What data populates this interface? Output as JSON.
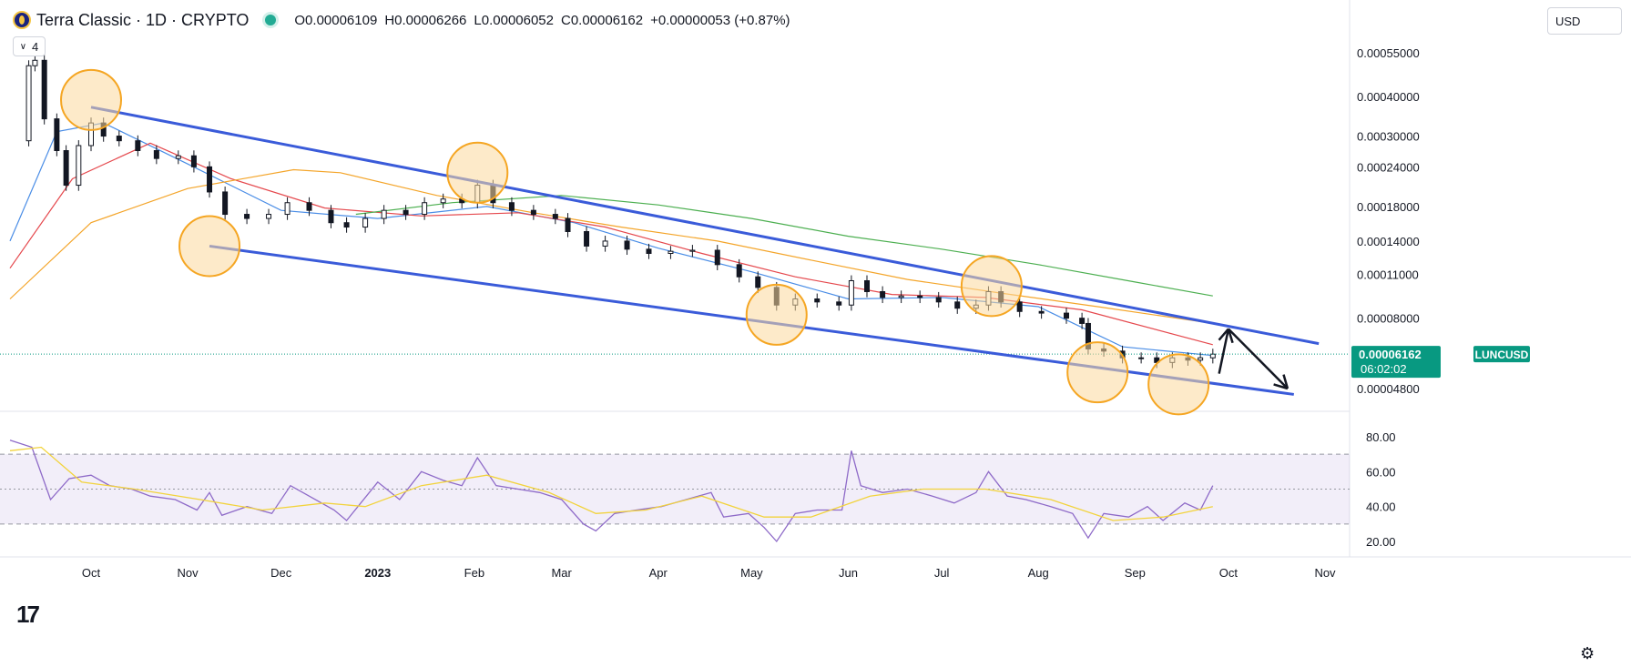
{
  "header": {
    "title": "Terra Classic · 1D · CRYPTO",
    "open": "O0.00006109",
    "high": "H0.00006266",
    "low": "L0.00006052",
    "close": "C0.00006162",
    "change": "+0.00000053 (+0.87%)",
    "indicator_count": "4",
    "currency": "USD"
  },
  "colors": {
    "channel": "#3a5bd9",
    "ma_fast": "#4a8de6",
    "ma_mid": "#e5484d",
    "ma_slow": "#f4a52a",
    "ma_long": "#4caf50",
    "rsi": "#8e6ac8",
    "rsi_ma": "#f2d33c",
    "price_tag": "#089981",
    "circle_fill": "#fbd89c",
    "circle_stroke": "#f5a623"
  },
  "chart_data": [
    {
      "type": "candlestick",
      "title": "Terra Classic · 1D · CRYPTO",
      "symbol": "LUNCUSD",
      "current_price": "0.00006162",
      "countdown": "06:02:02",
      "y_scale": "log",
      "y_ticks": [
        "0.00055000",
        "0.00040000",
        "0.00030000",
        "0.00024000",
        "0.00018000",
        "0.00014000",
        "0.00011000",
        "0.00008000",
        "0.00004800"
      ],
      "x_ticks": [
        "Oct",
        "Nov",
        "Dec",
        "2023",
        "Feb",
        "Mar",
        "Apr",
        "May",
        "Jun",
        "Jul",
        "Aug",
        "Sep",
        "Oct",
        "Nov"
      ],
      "x_range": [
        "2022-09-05",
        "2023-11-15"
      ],
      "close_series": [
        [
          "2022-09-08",
          0.00029
        ],
        [
          "2022-09-11",
          0.0005
        ],
        [
          "2022-09-13",
          0.00052
        ],
        [
          "2022-09-16",
          0.00034
        ],
        [
          "2022-09-20",
          0.00027
        ],
        [
          "2022-09-23",
          0.00021
        ],
        [
          "2022-09-27",
          0.00028
        ],
        [
          "2022-10-01",
          0.00033
        ],
        [
          "2022-10-05",
          0.0003
        ],
        [
          "2022-10-10",
          0.00029
        ],
        [
          "2022-10-16",
          0.00027
        ],
        [
          "2022-10-22",
          0.000255
        ],
        [
          "2022-10-29",
          0.00026
        ],
        [
          "2022-11-03",
          0.00024
        ],
        [
          "2022-11-08",
          0.0002
        ],
        [
          "2022-11-13",
          0.00017
        ],
        [
          "2022-11-20",
          0.000165
        ],
        [
          "2022-11-27",
          0.00017
        ],
        [
          "2022-12-03",
          0.000185
        ],
        [
          "2022-12-10",
          0.000175
        ],
        [
          "2022-12-17",
          0.00016
        ],
        [
          "2022-12-22",
          0.000155
        ],
        [
          "2022-12-28",
          0.000165
        ],
        [
          "2023-01-03",
          0.000175
        ],
        [
          "2023-01-10",
          0.00017
        ],
        [
          "2023-01-16",
          0.000185
        ],
        [
          "2023-01-22",
          0.00019
        ],
        [
          "2023-01-28",
          0.000185
        ],
        [
          "2023-02-02",
          0.00021
        ],
        [
          "2023-02-07",
          0.000185
        ],
        [
          "2023-02-13",
          0.000175
        ],
        [
          "2023-02-20",
          0.00017
        ],
        [
          "2023-02-27",
          0.000165
        ],
        [
          "2023-03-03",
          0.00015
        ],
        [
          "2023-03-09",
          0.000135
        ],
        [
          "2023-03-15",
          0.00014
        ],
        [
          "2023-03-22",
          0.000132
        ],
        [
          "2023-03-29",
          0.000128
        ],
        [
          "2023-04-05",
          0.00013
        ],
        [
          "2023-04-12",
          0.000131
        ],
        [
          "2023-04-20",
          0.000118
        ],
        [
          "2023-04-27",
          0.000108
        ],
        [
          "2023-05-03",
          0.0001
        ],
        [
          "2023-05-09",
          8.8e-05
        ],
        [
          "2023-05-15",
          9.2e-05
        ],
        [
          "2023-05-22",
          9e-05
        ],
        [
          "2023-05-29",
          8.8e-05
        ],
        [
          "2023-06-02",
          0.000105
        ],
        [
          "2023-06-07",
          9.7e-05
        ],
        [
          "2023-06-12",
          9.3e-05
        ],
        [
          "2023-06-18",
          9.4e-05
        ],
        [
          "2023-06-24",
          9.3e-05
        ],
        [
          "2023-06-30",
          9e-05
        ],
        [
          "2023-07-06",
          8.6e-05
        ],
        [
          "2023-07-12",
          8.8e-05
        ],
        [
          "2023-07-16",
          9.7e-05
        ],
        [
          "2023-07-20",
          9e-05
        ],
        [
          "2023-07-26",
          8.4e-05
        ],
        [
          "2023-08-02",
          8.3e-05
        ],
        [
          "2023-08-10",
          8e-05
        ],
        [
          "2023-08-15",
          7.7e-05
        ],
        [
          "2023-08-17",
          6.4e-05
        ],
        [
          "2023-08-22",
          6.3e-05
        ],
        [
          "2023-08-28",
          6e-05
        ],
        [
          "2023-09-03",
          6e-05
        ],
        [
          "2023-09-08",
          5.8e-05
        ],
        [
          "2023-09-13",
          6e-05
        ],
        [
          "2023-09-18",
          5.9e-05
        ],
        [
          "2023-09-22",
          6e-05
        ],
        [
          "2023-09-26",
          6.162e-05
        ]
      ],
      "lines": [
        {
          "name": "",
          "kind": "moving-average",
          "color_key": "ma_fast",
          "points": [
            [
              "2022-09-05",
              0.00014
            ],
            [
              "2022-09-20",
              0.00031
            ],
            [
              "2022-10-05",
              0.00033
            ],
            [
              "2022-11-01",
              0.000245
            ],
            [
              "2022-12-01",
              0.000175
            ],
            [
              "2023-01-01",
              0.000165
            ],
            [
              "2023-02-05",
              0.00018
            ],
            [
              "2023-03-05",
              0.00016
            ],
            [
              "2023-04-01",
              0.000133
            ],
            [
              "2023-05-01",
              0.000112
            ],
            [
              "2023-06-01",
              9.2e-05
            ],
            [
              "2023-07-01",
              9.3e-05
            ],
            [
              "2023-08-01",
              8.7e-05
            ],
            [
              "2023-08-28",
              6.5e-05
            ],
            [
              "2023-09-26",
              6.1e-05
            ]
          ]
        },
        {
          "name": "",
          "kind": "moving-average",
          "color_key": "ma_mid",
          "points": [
            [
              "2022-09-05",
              0.000115
            ],
            [
              "2022-09-25",
              0.00022
            ],
            [
              "2022-10-20",
              0.000285
            ],
            [
              "2022-11-15",
              0.00022
            ],
            [
              "2022-12-15",
              0.000178
            ],
            [
              "2023-01-15",
              0.000168
            ],
            [
              "2023-02-15",
              0.000172
            ],
            [
              "2023-03-15",
              0.000155
            ],
            [
              "2023-04-15",
              0.000128
            ],
            [
              "2023-05-15",
              0.000108
            ],
            [
              "2023-06-15",
              9.5e-05
            ],
            [
              "2023-07-15",
              9.3e-05
            ],
            [
              "2023-08-15",
              8.5e-05
            ],
            [
              "2023-09-26",
              6.6e-05
            ]
          ]
        },
        {
          "name": "",
          "kind": "moving-average",
          "color_key": "ma_slow",
          "points": [
            [
              "2022-09-05",
              9.2e-05
            ],
            [
              "2022-10-01",
              0.00016
            ],
            [
              "2022-11-01",
              0.000205
            ],
            [
              "2022-12-05",
              0.000235
            ],
            [
              "2022-12-20",
              0.00023
            ],
            [
              "2023-01-20",
              0.000195
            ],
            [
              "2023-02-20",
              0.000172
            ],
            [
              "2023-03-20",
              0.000155
            ],
            [
              "2023-04-20",
              0.00014
            ],
            [
              "2023-05-20",
              0.000122
            ],
            [
              "2023-06-20",
              0.000106
            ],
            [
              "2023-07-20",
              9.6e-05
            ],
            [
              "2023-08-20",
              8.7e-05
            ],
            [
              "2023-09-26",
              7.7e-05
            ]
          ]
        },
        {
          "name": "",
          "kind": "moving-average",
          "color_key": "ma_long",
          "points": [
            [
              "2022-12-25",
              0.00017
            ],
            [
              "2023-01-25",
              0.000185
            ],
            [
              "2023-03-01",
              0.000195
            ],
            [
              "2023-04-01",
              0.000182
            ],
            [
              "2023-05-01",
              0.000165
            ],
            [
              "2023-06-01",
              0.000145
            ],
            [
              "2023-07-01",
              0.000132
            ],
            [
              "2023-08-01",
              0.000118
            ],
            [
              "2023-09-01",
              0.000104
            ],
            [
              "2023-09-26",
              9.4e-05
            ]
          ]
        }
      ],
      "annotations": {
        "channel_upper": [
          [
            "2022-10-01",
            0.00037
          ],
          [
            "2023-10-30",
            6.65e-05
          ]
        ],
        "channel_lower": [
          [
            "2022-11-08",
            0.000135
          ],
          [
            "2023-10-22",
            4.6e-05
          ]
        ],
        "arrow_up": [
          [
            "2023-09-28",
            5.35e-05
          ],
          [
            "2023-10-01",
            7.4e-05
          ]
        ],
        "arrow_down": [
          [
            "2023-10-01",
            7.4e-05
          ],
          [
            "2023-10-20",
            4.8e-05
          ]
        ],
        "circles": [
          [
            "2022-10-01",
            0.00039
          ],
          [
            "2022-11-08",
            0.000135
          ],
          [
            "2023-02-02",
            0.00023
          ],
          [
            "2023-05-09",
            8.2e-05
          ],
          [
            "2023-07-17",
            0.000101
          ],
          [
            "2023-08-20",
            5.4e-05
          ],
          [
            "2023-09-15",
            4.95e-05
          ]
        ]
      }
    },
    {
      "type": "line",
      "title": "",
      "y_ticks": [
        "80.00",
        "60.00",
        "40.00",
        "20.00"
      ],
      "band": [
        30,
        70
      ],
      "midline": 50,
      "series": [
        {
          "name": "",
          "color_key": "rsi",
          "points": [
            [
              "2022-09-05",
              78
            ],
            [
              "2022-09-12",
              74
            ],
            [
              "2022-09-18",
              44
            ],
            [
              "2022-09-24",
              56
            ],
            [
              "2022-10-01",
              58
            ],
            [
              "2022-10-07",
              52
            ],
            [
              "2022-10-14",
              50
            ],
            [
              "2022-10-20",
              46
            ],
            [
              "2022-10-28",
              44
            ],
            [
              "2022-11-04",
              38
            ],
            [
              "2022-11-08",
              48
            ],
            [
              "2022-11-12",
              35
            ],
            [
              "2022-11-20",
              40
            ],
            [
              "2022-11-28",
              36
            ],
            [
              "2022-12-04",
              52
            ],
            [
              "2022-12-10",
              46
            ],
            [
              "2022-12-18",
              38
            ],
            [
              "2022-12-22",
              32
            ],
            [
              "2023-01-01",
              54
            ],
            [
              "2023-01-08",
              44
            ],
            [
              "2023-01-15",
              60
            ],
            [
              "2023-01-22",
              55
            ],
            [
              "2023-01-28",
              52
            ],
            [
              "2023-02-02",
              68
            ],
            [
              "2023-02-08",
              52
            ],
            [
              "2023-02-15",
              50
            ],
            [
              "2023-02-22",
              48
            ],
            [
              "2023-03-01",
              44
            ],
            [
              "2023-03-08",
              30
            ],
            [
              "2023-03-12",
              26
            ],
            [
              "2023-03-18",
              36
            ],
            [
              "2023-03-25",
              38
            ],
            [
              "2023-04-02",
              40
            ],
            [
              "2023-04-10",
              44
            ],
            [
              "2023-04-18",
              48
            ],
            [
              "2023-04-22",
              34
            ],
            [
              "2023-04-30",
              36
            ],
            [
              "2023-05-05",
              28
            ],
            [
              "2023-05-09",
              20
            ],
            [
              "2023-05-15",
              36
            ],
            [
              "2023-05-22",
              38
            ],
            [
              "2023-05-30",
              38
            ],
            [
              "2023-06-02",
              72
            ],
            [
              "2023-06-05",
              52
            ],
            [
              "2023-06-12",
              48
            ],
            [
              "2023-06-20",
              50
            ],
            [
              "2023-06-28",
              46
            ],
            [
              "2023-07-05",
              42
            ],
            [
              "2023-07-12",
              48
            ],
            [
              "2023-07-16",
              60
            ],
            [
              "2023-07-22",
              46
            ],
            [
              "2023-07-28",
              44
            ],
            [
              "2023-08-05",
              40
            ],
            [
              "2023-08-12",
              36
            ],
            [
              "2023-08-17",
              22
            ],
            [
              "2023-08-22",
              36
            ],
            [
              "2023-08-30",
              34
            ],
            [
              "2023-09-05",
              40
            ],
            [
              "2023-09-10",
              32
            ],
            [
              "2023-09-17",
              42
            ],
            [
              "2023-09-22",
              38
            ],
            [
              "2023-09-26",
              52
            ]
          ]
        },
        {
          "name": "",
          "color_key": "rsi_ma",
          "points": [
            [
              "2022-09-05",
              72
            ],
            [
              "2022-09-15",
              74
            ],
            [
              "2022-09-28",
              54
            ],
            [
              "2022-10-15",
              50
            ],
            [
              "2022-11-05",
              44
            ],
            [
              "2022-11-25",
              38
            ],
            [
              "2022-12-15",
              42
            ],
            [
              "2022-12-28",
              40
            ],
            [
              "2023-01-15",
              52
            ],
            [
              "2023-02-05",
              58
            ],
            [
              "2023-02-25",
              48
            ],
            [
              "2023-03-12",
              36
            ],
            [
              "2023-03-28",
              38
            ],
            [
              "2023-04-15",
              46
            ],
            [
              "2023-05-05",
              34
            ],
            [
              "2023-05-20",
              34
            ],
            [
              "2023-06-08",
              46
            ],
            [
              "2023-06-25",
              50
            ],
            [
              "2023-07-15",
              50
            ],
            [
              "2023-08-05",
              44
            ],
            [
              "2023-08-25",
              32
            ],
            [
              "2023-09-10",
              34
            ],
            [
              "2023-09-26",
              40
            ]
          ]
        }
      ]
    }
  ]
}
